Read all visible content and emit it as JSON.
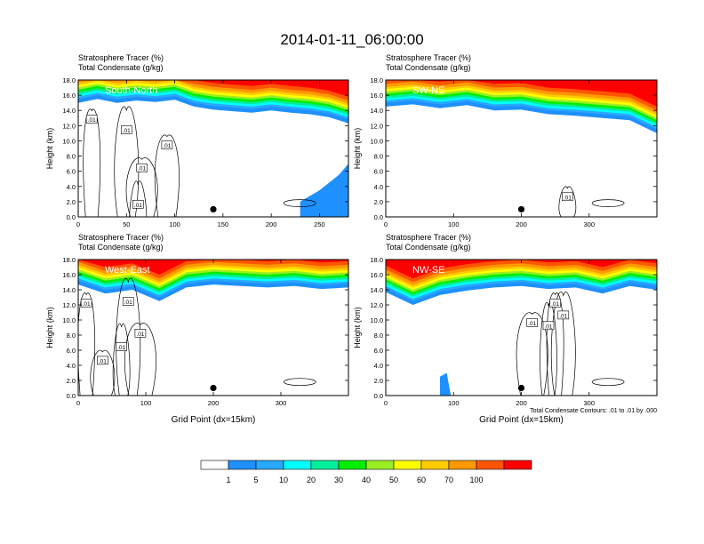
{
  "figure": {
    "title": "2014-01-11_06:00:00",
    "contour_note": "Total Condensate Contours: .01 to .01 by .000"
  },
  "colorbar": {
    "levels": [
      "1",
      "5",
      "10",
      "20",
      "30",
      "40",
      "50",
      "60",
      "70",
      "100"
    ],
    "colors": [
      "#ffffff",
      "#1e90ff",
      "#28a8ff",
      "#00ffff",
      "#00ee99",
      "#00ee00",
      "#99ee22",
      "#ffff00",
      "#ffcc00",
      "#ff9900",
      "#ff5500",
      "#ff0000"
    ]
  },
  "chart_data": [
    {
      "type": "heatmap",
      "panel_label": "South-North",
      "header_lines": [
        "Stratosphere Tracer   (%)",
        "Total Condensate   (g/kg)"
      ],
      "ylabel": "Height (km)",
      "xlabel": "",
      "xlim": [
        0,
        280
      ],
      "ylim": [
        0,
        18
      ],
      "xticks": [
        "0",
        "50",
        "100",
        "150",
        "200",
        "250"
      ],
      "yticks": [
        "0.0",
        "2.0",
        "4.0",
        "6.0",
        "8.0",
        "10.0",
        "12.0",
        "14.0",
        "16.0",
        "18.0"
      ],
      "contour_labels": [
        ".01",
        ".01",
        ".01",
        ".01",
        ".01"
      ],
      "marker": {
        "x": 140,
        "y": 1.0
      },
      "tracer_front_km": [
        [
          0,
          15.5
        ],
        [
          20,
          16.0
        ],
        [
          40,
          15.5
        ],
        [
          60,
          15.8
        ],
        [
          80,
          15.6
        ],
        [
          100,
          15.9
        ],
        [
          120,
          15.0
        ],
        [
          140,
          14.6
        ],
        [
          160,
          14.4
        ],
        [
          180,
          14.2
        ],
        [
          200,
          14.5
        ],
        [
          220,
          14.2
        ],
        [
          240,
          14.0
        ],
        [
          260,
          13.6
        ],
        [
          280,
          12.8
        ]
      ],
      "low_tracer_intrusion": [
        [
          230,
          2.0
        ],
        [
          250,
          3.5
        ],
        [
          270,
          5.5
        ],
        [
          280,
          7.0
        ]
      ]
    },
    {
      "type": "heatmap",
      "panel_label": "SW-NE",
      "header_lines": [
        "Stratosphere Tracer   (%)",
        "Total Condensate   (g/kg)"
      ],
      "ylabel": "Height (km)",
      "xlabel": "",
      "xlim": [
        0,
        400
      ],
      "ylim": [
        0,
        18
      ],
      "xticks": [
        "0",
        "100",
        "200",
        "300"
      ],
      "yticks": [
        "0.0",
        "2.0",
        "4.0",
        "6.0",
        "8.0",
        "10.0",
        "12.0",
        "14.0",
        "16.0",
        "18.0"
      ],
      "contour_labels": [
        ".01"
      ],
      "marker": {
        "x": 200,
        "y": 1.0
      },
      "tracer_front_km": [
        [
          0,
          15.0
        ],
        [
          40,
          15.3
        ],
        [
          80,
          14.8
        ],
        [
          120,
          15.2
        ],
        [
          160,
          14.5
        ],
        [
          200,
          14.6
        ],
        [
          240,
          14.0
        ],
        [
          280,
          13.8
        ],
        [
          320,
          13.5
        ],
        [
          360,
          13.2
        ],
        [
          400,
          11.5
        ]
      ],
      "low_tracer_intrusion": []
    },
    {
      "type": "heatmap",
      "panel_label": "West-East",
      "header_lines": [
        "Stratosphere Tracer   (%)",
        "Total Condensate   (g/kg)"
      ],
      "ylabel": "Height (km)",
      "xlabel": "Grid Point (dx=15km)",
      "xlim": [
        0,
        400
      ],
      "ylim": [
        0,
        18
      ],
      "xticks": [
        "0",
        "100",
        "200",
        "300"
      ],
      "yticks": [
        "0.0",
        "2.0",
        "4.0",
        "6.0",
        "8.0",
        "10.0",
        "12.0",
        "14.0",
        "16.0",
        "18.0"
      ],
      "contour_labels": [
        ".01",
        ".01",
        ".01",
        ".01",
        ".01"
      ],
      "marker": {
        "x": 200,
        "y": 1.0
      },
      "tracer_front_km": [
        [
          0,
          15.2
        ],
        [
          40,
          14.0
        ],
        [
          80,
          14.5
        ],
        [
          120,
          13.0
        ],
        [
          160,
          14.8
        ],
        [
          200,
          15.2
        ],
        [
          240,
          15.0
        ],
        [
          280,
          14.8
        ],
        [
          320,
          15.0
        ],
        [
          360,
          14.6
        ],
        [
          400,
          14.8
        ]
      ],
      "low_tracer_intrusion": []
    },
    {
      "type": "heatmap",
      "panel_label": "NW-SE",
      "header_lines": [
        "Stratosphere Tracer   (%)",
        "Total Condensate   (g/kg)"
      ],
      "ylabel": "Height (km)",
      "xlabel": "Grid Point (dx=15km)",
      "xlim": [
        0,
        400
      ],
      "ylim": [
        0,
        18
      ],
      "xticks": [
        "0",
        "100",
        "200",
        "300"
      ],
      "yticks": [
        "0.0",
        "2.0",
        "4.0",
        "6.0",
        "8.0",
        "10.0",
        "12.0",
        "14.0",
        "16.0",
        "18.0"
      ],
      "contour_labels": [
        ".01",
        ".01",
        ".01",
        ".01"
      ],
      "marker": {
        "x": 200,
        "y": 1.0
      },
      "tracer_front_km": [
        [
          0,
          14.2
        ],
        [
          40,
          12.5
        ],
        [
          80,
          13.8
        ],
        [
          120,
          14.4
        ],
        [
          160,
          14.8
        ],
        [
          200,
          15.0
        ],
        [
          240,
          14.6
        ],
        [
          280,
          14.8
        ],
        [
          320,
          14.0
        ],
        [
          360,
          15.0
        ],
        [
          400,
          14.5
        ]
      ],
      "low_tracer_intrusion": [
        [
          80,
          2.5
        ],
        [
          90,
          3.0
        ]
      ]
    }
  ]
}
